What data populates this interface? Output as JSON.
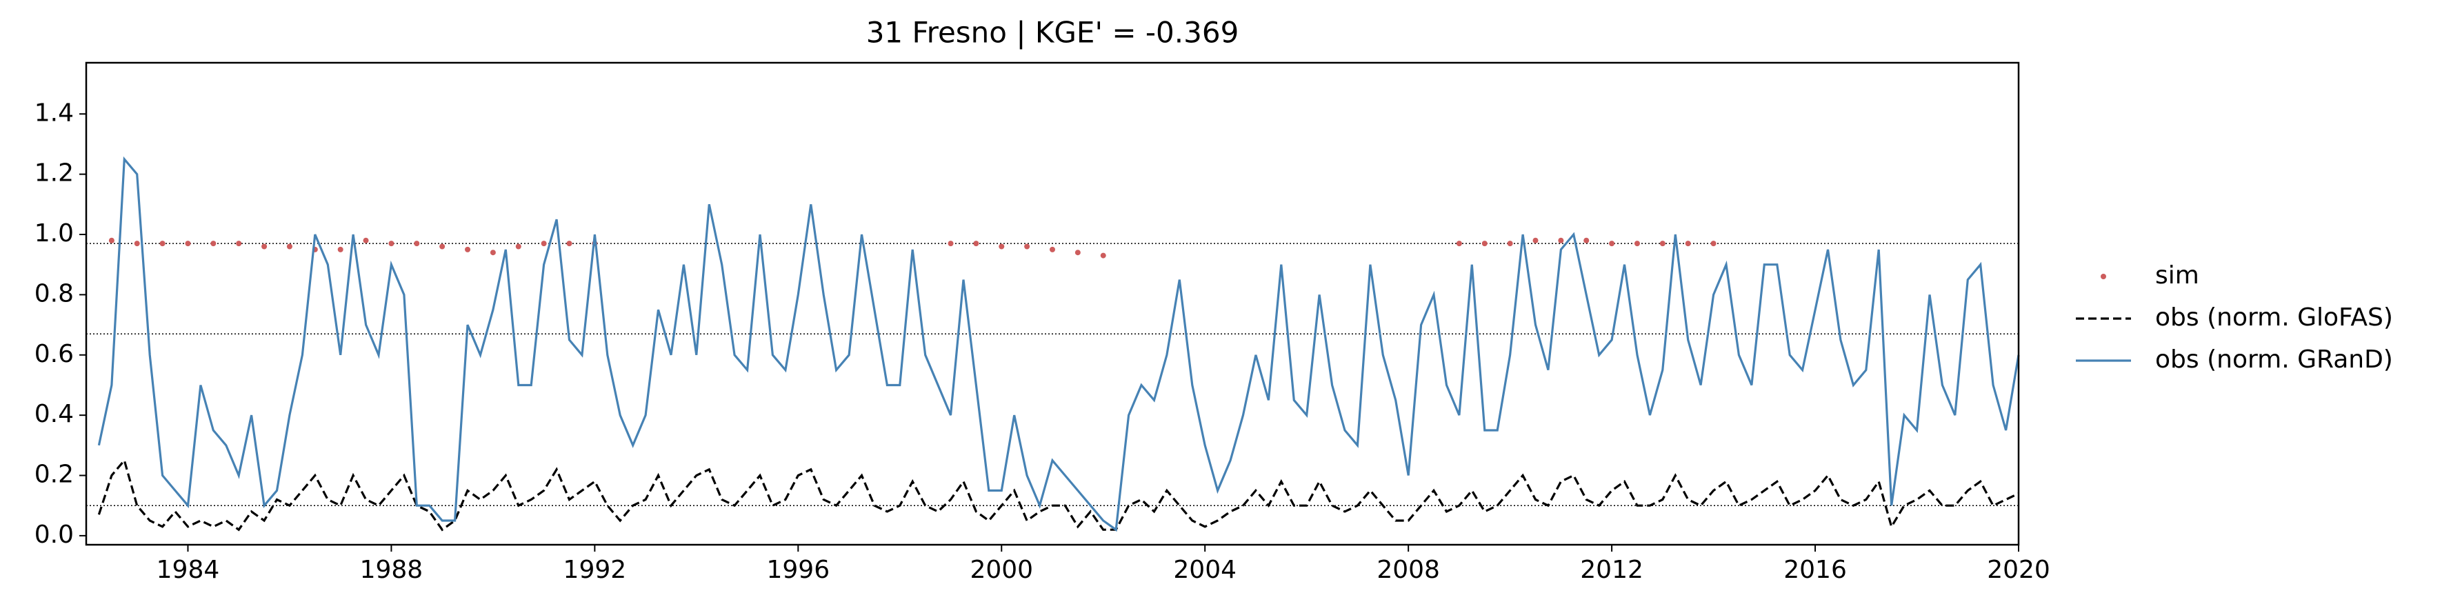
{
  "chart_data": {
    "type": "line",
    "title": "31  Fresno | KGE' = -0.369",
    "xlim": [
      1982,
      2020
    ],
    "xticks": [
      1984,
      1988,
      1992,
      1996,
      2000,
      2004,
      2008,
      2012,
      2016,
      2020
    ],
    "ylim": [
      -0.03,
      1.57
    ],
    "yticks": [
      {
        "value": 0,
        "label": "0.0"
      },
      0.2,
      0.4,
      0.6,
      0.8,
      {
        "value": 1,
        "label": "1.0"
      },
      1.2,
      1.4
    ],
    "hlines": [
      0.97,
      0.67,
      0.1
    ],
    "series": [
      {
        "name": "sim",
        "color": "#cd5c5c",
        "style": "dots",
        "x": [
          1982.5,
          1983,
          1983.5,
          1984,
          1984.5,
          1985,
          1985.5,
          1986,
          1986.5,
          1987,
          1987.5,
          1988,
          1988.5,
          1989,
          1989.5,
          1990,
          1990.5,
          1991,
          1991.5,
          1992,
          1999,
          1999.5,
          2000,
          2000.5,
          2001,
          2001.5,
          2002,
          2009,
          2009.5,
          2010,
          2010.5,
          2011,
          2011.5,
          2012,
          2012.5,
          2013,
          2013.5,
          2014
        ],
        "values": [
          0.98,
          0.97,
          0.97,
          0.97,
          0.97,
          0.97,
          0.96,
          0.96,
          0.95,
          0.95,
          0.98,
          0.97,
          0.97,
          0.96,
          0.95,
          0.94,
          0.96,
          0.97,
          0.97,
          0.97,
          0.97,
          0.97,
          0.96,
          0.96,
          0.95,
          0.94,
          0.93,
          0.97,
          0.97,
          0.97,
          0.98,
          0.98,
          0.98,
          0.97,
          0.97,
          0.97,
          0.97,
          0.97
        ]
      },
      {
        "name": "obs (norm. GloFAS)",
        "color": "#000000",
        "style": "dashed",
        "x": [
          1982.25,
          1982.5,
          1982.75,
          1983,
          1983.25,
          1983.5,
          1983.75,
          1984,
          1984.25,
          1984.5,
          1984.75,
          1985,
          1985.25,
          1985.5,
          1985.75,
          1986,
          1986.25,
          1986.5,
          1986.75,
          1987,
          1987.25,
          1987.5,
          1987.75,
          1988,
          1988.25,
          1988.5,
          1988.75,
          1989,
          1989.25,
          1989.5,
          1989.75,
          1990,
          1990.25,
          1990.5,
          1990.75,
          1991,
          1991.25,
          1991.5,
          1991.75,
          1992,
          1992.25,
          1992.5,
          1992.75,
          1993,
          1993.25,
          1993.5,
          1993.75,
          1994,
          1994.25,
          1994.5,
          1994.75,
          1995,
          1995.25,
          1995.5,
          1995.75,
          1996,
          1996.25,
          1996.5,
          1996.75,
          1997,
          1997.25,
          1997.5,
          1997.75,
          1998,
          1998.25,
          1998.5,
          1998.75,
          1999,
          1999.25,
          1999.5,
          1999.75,
          2000,
          2000.25,
          2000.5,
          2000.75,
          2001,
          2001.25,
          2001.5,
          2001.75,
          2002,
          2002.25,
          2002.5,
          2002.75,
          2003,
          2003.25,
          2003.5,
          2003.75,
          2004,
          2004.25,
          2004.5,
          2004.75,
          2005,
          2005.25,
          2005.5,
          2005.75,
          2006,
          2006.25,
          2006.5,
          2006.75,
          2007,
          2007.25,
          2007.5,
          2007.75,
          2008,
          2008.25,
          2008.5,
          2008.75,
          2009,
          2009.25,
          2009.5,
          2009.75,
          2010,
          2010.25,
          2010.5,
          2010.75,
          2011,
          2011.25,
          2011.5,
          2011.75,
          2012,
          2012.25,
          2012.5,
          2012.75,
          2013,
          2013.25,
          2013.5,
          2013.75,
          2014,
          2014.25,
          2014.5,
          2014.75,
          2015,
          2015.25,
          2015.5,
          2015.75,
          2016,
          2016.25,
          2016.5,
          2016.75,
          2017,
          2017.25,
          2017.5,
          2017.75,
          2018,
          2018.25,
          2018.5,
          2018.75,
          2019,
          2019.25,
          2019.5,
          2019.75,
          2020
        ],
        "values": [
          0.07,
          0.2,
          0.25,
          0.1,
          0.05,
          0.03,
          0.08,
          0.03,
          0.05,
          0.03,
          0.05,
          0.02,
          0.08,
          0.05,
          0.12,
          0.1,
          0.15,
          0.2,
          0.12,
          0.1,
          0.2,
          0.12,
          0.1,
          0.15,
          0.2,
          0.1,
          0.08,
          0.02,
          0.05,
          0.15,
          0.12,
          0.15,
          0.2,
          0.1,
          0.12,
          0.15,
          0.22,
          0.12,
          0.15,
          0.18,
          0.1,
          0.05,
          0.1,
          0.12,
          0.2,
          0.1,
          0.15,
          0.2,
          0.22,
          0.12,
          0.1,
          0.15,
          0.2,
          0.1,
          0.12,
          0.2,
          0.22,
          0.12,
          0.1,
          0.15,
          0.2,
          0.1,
          0.08,
          0.1,
          0.18,
          0.1,
          0.08,
          0.12,
          0.18,
          0.08,
          0.05,
          0.1,
          0.15,
          0.05,
          0.08,
          0.1,
          0.1,
          0.03,
          0.08,
          0.02,
          0.02,
          0.1,
          0.12,
          0.08,
          0.15,
          0.1,
          0.05,
          0.03,
          0.05,
          0.08,
          0.1,
          0.15,
          0.1,
          0.18,
          0.1,
          0.1,
          0.18,
          0.1,
          0.08,
          0.1,
          0.15,
          0.1,
          0.05,
          0.05,
          0.1,
          0.15,
          0.08,
          0.1,
          0.15,
          0.08,
          0.1,
          0.15,
          0.2,
          0.12,
          0.1,
          0.18,
          0.2,
          0.12,
          0.1,
          0.15,
          0.18,
          0.1,
          0.1,
          0.12,
          0.2,
          0.12,
          0.1,
          0.15,
          0.18,
          0.1,
          0.12,
          0.15,
          0.18,
          0.1,
          0.12,
          0.15,
          0.2,
          0.12,
          0.1,
          0.12,
          0.18,
          0.03,
          0.1,
          0.12,
          0.15,
          0.1,
          0.1,
          0.15,
          0.18,
          0.1,
          0.12,
          0.14
        ]
      },
      {
        "name": "obs (norm. GRanD)",
        "color": "#4682b4",
        "style": "solid",
        "x": [
          1982.25,
          1982.5,
          1982.75,
          1983,
          1983.25,
          1983.5,
          1983.75,
          1984,
          1984.25,
          1984.5,
          1984.75,
          1985,
          1985.25,
          1985.5,
          1985.75,
          1986,
          1986.25,
          1986.5,
          1986.75,
          1987,
          1987.25,
          1987.5,
          1987.75,
          1988,
          1988.25,
          1988.5,
          1988.75,
          1989,
          1989.25,
          1989.5,
          1989.75,
          1990,
          1990.25,
          1990.5,
          1990.75,
          1991,
          1991.25,
          1991.5,
          1991.75,
          1992,
          1992.25,
          1992.5,
          1992.75,
          1993,
          1993.25,
          1993.5,
          1993.75,
          1994,
          1994.25,
          1994.5,
          1994.75,
          1995,
          1995.25,
          1995.5,
          1995.75,
          1996,
          1996.25,
          1996.5,
          1996.75,
          1997,
          1997.25,
          1997.5,
          1997.75,
          1998,
          1998.25,
          1998.5,
          1998.75,
          1999,
          1999.25,
          1999.5,
          1999.75,
          2000,
          2000.25,
          2000.5,
          2000.75,
          2001,
          2001.25,
          2001.5,
          2001.75,
          2002,
          2002.25,
          2002.5,
          2002.75,
          2003,
          2003.25,
          2003.5,
          2003.75,
          2004,
          2004.25,
          2004.5,
          2004.75,
          2005,
          2005.25,
          2005.5,
          2005.75,
          2006,
          2006.25,
          2006.5,
          2006.75,
          2007,
          2007.25,
          2007.5,
          2007.75,
          2008,
          2008.25,
          2008.5,
          2008.75,
          2009,
          2009.25,
          2009.5,
          2009.75,
          2010,
          2010.25,
          2010.5,
          2010.75,
          2011,
          2011.25,
          2011.5,
          2011.75,
          2012,
          2012.25,
          2012.5,
          2012.75,
          2013,
          2013.25,
          2013.5,
          2013.75,
          2014,
          2014.25,
          2014.5,
          2014.75,
          2015,
          2015.25,
          2015.5,
          2015.75,
          2016,
          2016.25,
          2016.5,
          2016.75,
          2017,
          2017.25,
          2017.5,
          2017.75,
          2018,
          2018.25,
          2018.5,
          2018.75,
          2019,
          2019.25,
          2019.5,
          2019.75,
          2020
        ],
        "values": [
          0.3,
          0.5,
          1.25,
          1.2,
          0.6,
          0.2,
          0.15,
          0.1,
          0.5,
          0.35,
          0.3,
          0.2,
          0.4,
          0.1,
          0.15,
          0.4,
          0.6,
          1.0,
          0.9,
          0.6,
          1.0,
          0.7,
          0.6,
          0.9,
          0.8,
          0.1,
          0.1,
          0.05,
          0.05,
          0.7,
          0.6,
          0.75,
          0.95,
          0.5,
          0.5,
          0.9,
          1.05,
          0.65,
          0.6,
          1.0,
          0.6,
          0.4,
          0.3,
          0.4,
          0.75,
          0.6,
          0.9,
          0.6,
          1.1,
          0.9,
          0.6,
          0.55,
          1.0,
          0.6,
          0.55,
          0.8,
          1.1,
          0.8,
          0.55,
          0.6,
          1.0,
          0.75,
          0.5,
          0.5,
          0.95,
          0.6,
          0.5,
          0.4,
          0.85,
          0.5,
          0.15,
          0.15,
          0.4,
          0.2,
          0.1,
          0.25,
          0.2,
          0.15,
          0.1,
          0.05,
          0.02,
          0.4,
          0.5,
          0.45,
          0.6,
          0.85,
          0.5,
          0.3,
          0.15,
          0.25,
          0.4,
          0.6,
          0.45,
          0.9,
          0.45,
          0.4,
          0.8,
          0.5,
          0.35,
          0.3,
          0.9,
          0.6,
          0.45,
          0.2,
          0.7,
          0.8,
          0.5,
          0.4,
          0.9,
          0.35,
          0.35,
          0.6,
          1.0,
          0.7,
          0.55,
          0.95,
          1.0,
          0.8,
          0.6,
          0.65,
          0.9,
          0.6,
          0.4,
          0.55,
          1.0,
          0.65,
          0.5,
          0.8,
          0.9,
          0.6,
          0.5,
          0.9,
          0.9,
          0.6,
          0.55,
          0.75,
          0.95,
          0.65,
          0.5,
          0.55,
          0.95,
          0.1,
          0.4,
          0.35,
          0.8,
          0.5,
          0.4,
          0.85,
          0.9,
          0.5,
          0.35,
          0.6
        ]
      }
    ]
  }
}
